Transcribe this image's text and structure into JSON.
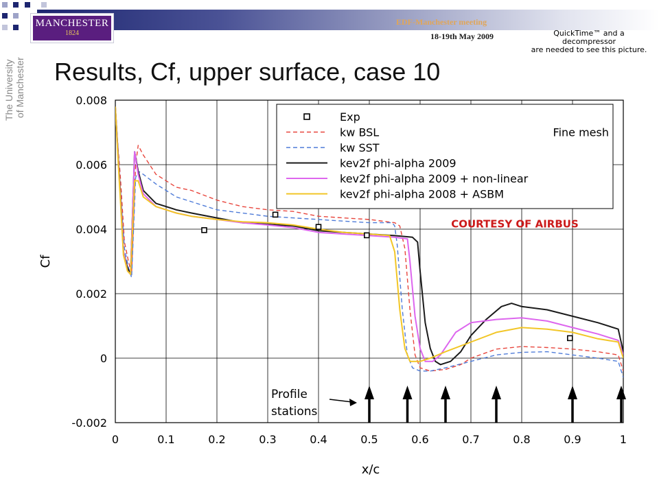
{
  "header": {
    "meeting": "EDF-Manchester meeting",
    "date": "18-19th May 2009",
    "quicktime_notice": [
      "QuickTime™ and a",
      "decompressor",
      "are needed to see this picture."
    ],
    "logo_name": "MANCHESTER",
    "logo_year": "1824",
    "university": [
      "The University",
      "of Manchester"
    ],
    "colors": {
      "banner": "#1d2670",
      "logo": "#5a1e7f",
      "meeting_text": "#e0a65a"
    }
  },
  "slide": {
    "title": "Results, Cf, upper surface, case 10"
  },
  "chart_data": {
    "type": "line",
    "xlabel": "x/c",
    "ylabel": "Cf",
    "xlim": [
      0,
      1
    ],
    "ylim": [
      -0.002,
      0.008
    ],
    "x_ticks": [
      0,
      0.1,
      0.2,
      0.3,
      0.4,
      0.5,
      0.6,
      0.7,
      0.8,
      0.9,
      1
    ],
    "x_tick_labels": [
      "0",
      "0.1",
      "0.2",
      "0.3",
      "0.4",
      "0.5",
      "0.6",
      "0.7",
      "0.8",
      "0.9",
      "1"
    ],
    "y_ticks": [
      -0.002,
      0,
      0.002,
      0.004,
      0.006,
      0.008
    ],
    "y_tick_labels": [
      "-0.002",
      "0",
      "0.002",
      "0.004",
      "0.006",
      "0.008"
    ],
    "grid": true,
    "legend_position": "top-right",
    "legend_note": "Fine mesh",
    "annotation": "COURTESY OF AIRBUS",
    "profile_label": [
      "Profile",
      "stations"
    ],
    "profile_stations": [
      0.5,
      0.575,
      0.65,
      0.75,
      0.9,
      1.0
    ],
    "series": [
      {
        "name": "Exp",
        "style": "markers",
        "color": "#000000",
        "points": [
          [
            0.175,
            0.00397
          ],
          [
            0.315,
            0.00445
          ],
          [
            0.4,
            0.00407
          ],
          [
            0.495,
            0.00381
          ],
          [
            0.895,
            0.00062
          ]
        ]
      },
      {
        "name": "kw BSL",
        "style": "dashed",
        "color": "#e8453c",
        "points": [
          [
            0.0,
            0.0076
          ],
          [
            0.006,
            0.0064
          ],
          [
            0.01,
            0.0056
          ],
          [
            0.018,
            0.0036
          ],
          [
            0.026,
            0.003
          ],
          [
            0.032,
            0.0026
          ],
          [
            0.04,
            0.006
          ],
          [
            0.045,
            0.0066
          ],
          [
            0.055,
            0.0063
          ],
          [
            0.08,
            0.0057
          ],
          [
            0.12,
            0.0053
          ],
          [
            0.15,
            0.0052
          ],
          [
            0.2,
            0.0049
          ],
          [
            0.25,
            0.0047
          ],
          [
            0.3,
            0.0046
          ],
          [
            0.35,
            0.00455
          ],
          [
            0.4,
            0.0044
          ],
          [
            0.45,
            0.00435
          ],
          [
            0.5,
            0.0043
          ],
          [
            0.55,
            0.0042
          ],
          [
            0.56,
            0.0041
          ],
          [
            0.57,
            0.0034
          ],
          [
            0.58,
            0.0015
          ],
          [
            0.59,
            0.0001
          ],
          [
            0.6,
            -0.0003
          ],
          [
            0.62,
            -0.0004
          ],
          [
            0.65,
            -0.00035
          ],
          [
            0.68,
            -0.0002
          ],
          [
            0.7,
            0.0
          ],
          [
            0.75,
            0.00028
          ],
          [
            0.8,
            0.00036
          ],
          [
            0.85,
            0.00033
          ],
          [
            0.9,
            0.00028
          ],
          [
            0.95,
            0.0002
          ],
          [
            0.99,
            0.0001
          ],
          [
            1.0,
            -0.0004
          ]
        ]
      },
      {
        "name": "kw SST",
        "style": "dashed",
        "color": "#4e7bd8",
        "points": [
          [
            0.0,
            0.0075
          ],
          [
            0.006,
            0.0062
          ],
          [
            0.01,
            0.0052
          ],
          [
            0.018,
            0.0034
          ],
          [
            0.026,
            0.0028
          ],
          [
            0.032,
            0.0025
          ],
          [
            0.04,
            0.0056
          ],
          [
            0.045,
            0.0058
          ],
          [
            0.055,
            0.0057
          ],
          [
            0.08,
            0.0054
          ],
          [
            0.12,
            0.005
          ],
          [
            0.15,
            0.00485
          ],
          [
            0.2,
            0.0046
          ],
          [
            0.25,
            0.0045
          ],
          [
            0.3,
            0.0044
          ],
          [
            0.35,
            0.00435
          ],
          [
            0.4,
            0.0043
          ],
          [
            0.45,
            0.00425
          ],
          [
            0.5,
            0.0042
          ],
          [
            0.545,
            0.0042
          ],
          [
            0.55,
            0.0041
          ],
          [
            0.555,
            0.0035
          ],
          [
            0.565,
            0.0015
          ],
          [
            0.575,
            0.0001
          ],
          [
            0.585,
            -0.0003
          ],
          [
            0.6,
            -0.0004
          ],
          [
            0.62,
            -0.0004
          ],
          [
            0.65,
            -0.0003
          ],
          [
            0.7,
            -0.0001
          ],
          [
            0.75,
            0.0001
          ],
          [
            0.8,
            0.00018
          ],
          [
            0.85,
            0.0002
          ],
          [
            0.9,
            0.0001
          ],
          [
            0.95,
            0.0
          ],
          [
            0.99,
            -0.0001
          ],
          [
            1.0,
            -0.0006
          ]
        ]
      },
      {
        "name": "kev2f phi-alpha 2009",
        "style": "solid",
        "color": "#1a1a1a",
        "points": [
          [
            0.0,
            0.0078
          ],
          [
            0.006,
            0.0062
          ],
          [
            0.01,
            0.0051
          ],
          [
            0.016,
            0.0033
          ],
          [
            0.024,
            0.0028
          ],
          [
            0.03,
            0.0026
          ],
          [
            0.038,
            0.0064
          ],
          [
            0.045,
            0.0058
          ],
          [
            0.055,
            0.0052
          ],
          [
            0.08,
            0.0048
          ],
          [
            0.12,
            0.0046
          ],
          [
            0.15,
            0.0045
          ],
          [
            0.2,
            0.00435
          ],
          [
            0.25,
            0.0042
          ],
          [
            0.3,
            0.00415
          ],
          [
            0.35,
            0.0041
          ],
          [
            0.4,
            0.00395
          ],
          [
            0.45,
            0.0039
          ],
          [
            0.5,
            0.00385
          ],
          [
            0.55,
            0.0038
          ],
          [
            0.585,
            0.00375
          ],
          [
            0.595,
            0.0036
          ],
          [
            0.6,
            0.0027
          ],
          [
            0.61,
            0.0011
          ],
          [
            0.62,
            0.0003
          ],
          [
            0.63,
            -0.0001
          ],
          [
            0.64,
            -0.0002
          ],
          [
            0.66,
            -0.0001
          ],
          [
            0.68,
            0.0002
          ],
          [
            0.7,
            0.0007
          ],
          [
            0.73,
            0.0012
          ],
          [
            0.76,
            0.0016
          ],
          [
            0.78,
            0.0017
          ],
          [
            0.8,
            0.0016
          ],
          [
            0.85,
            0.0015
          ],
          [
            0.9,
            0.0013
          ],
          [
            0.95,
            0.0011
          ],
          [
            0.99,
            0.0009
          ],
          [
            1.0,
            0.0002
          ]
        ]
      },
      {
        "name": "kev2f phi-alpha 2009 + non-linear",
        "style": "solid",
        "color": "#dd66ee",
        "points": [
          [
            0.0,
            0.0078
          ],
          [
            0.006,
            0.0061
          ],
          [
            0.01,
            0.005
          ],
          [
            0.016,
            0.0033
          ],
          [
            0.024,
            0.0027
          ],
          [
            0.03,
            0.0026
          ],
          [
            0.038,
            0.0064
          ],
          [
            0.045,
            0.0057
          ],
          [
            0.055,
            0.0051
          ],
          [
            0.08,
            0.0047
          ],
          [
            0.12,
            0.0045
          ],
          [
            0.15,
            0.0044
          ],
          [
            0.2,
            0.0043
          ],
          [
            0.25,
            0.0042
          ],
          [
            0.3,
            0.00413
          ],
          [
            0.35,
            0.00405
          ],
          [
            0.4,
            0.0039
          ],
          [
            0.45,
            0.00385
          ],
          [
            0.5,
            0.0038
          ],
          [
            0.55,
            0.00375
          ],
          [
            0.575,
            0.0037
          ],
          [
            0.58,
            0.003
          ],
          [
            0.59,
            0.0013
          ],
          [
            0.6,
            0.0003
          ],
          [
            0.61,
            -0.0001
          ],
          [
            0.625,
            -0.0001
          ],
          [
            0.64,
            0.0001
          ],
          [
            0.67,
            0.0008
          ],
          [
            0.7,
            0.0011
          ],
          [
            0.75,
            0.0012
          ],
          [
            0.8,
            0.00125
          ],
          [
            0.85,
            0.00115
          ],
          [
            0.9,
            0.00095
          ],
          [
            0.95,
            0.00075
          ],
          [
            0.99,
            0.00055
          ],
          [
            1.0,
            0.0001
          ]
        ]
      },
      {
        "name": "kev2f phi-alpha 2008 + ASBM",
        "style": "solid",
        "color": "#f2c627",
        "points": [
          [
            0.0,
            0.0078
          ],
          [
            0.006,
            0.006
          ],
          [
            0.01,
            0.0049
          ],
          [
            0.016,
            0.0032
          ],
          [
            0.024,
            0.0027
          ],
          [
            0.03,
            0.0026
          ],
          [
            0.038,
            0.0055
          ],
          [
            0.045,
            0.0055
          ],
          [
            0.055,
            0.005
          ],
          [
            0.08,
            0.0047
          ],
          [
            0.12,
            0.0045
          ],
          [
            0.15,
            0.0044
          ],
          [
            0.2,
            0.0043
          ],
          [
            0.25,
            0.00423
          ],
          [
            0.3,
            0.0042
          ],
          [
            0.35,
            0.00413
          ],
          [
            0.4,
            0.004
          ],
          [
            0.45,
            0.0039
          ],
          [
            0.5,
            0.00385
          ],
          [
            0.54,
            0.0038
          ],
          [
            0.55,
            0.0033
          ],
          [
            0.56,
            0.0015
          ],
          [
            0.57,
            0.0003
          ],
          [
            0.58,
            -0.0001
          ],
          [
            0.6,
            -0.0001
          ],
          [
            0.62,
            0.0
          ],
          [
            0.65,
            0.0002
          ],
          [
            0.7,
            0.0005
          ],
          [
            0.75,
            0.0008
          ],
          [
            0.8,
            0.00095
          ],
          [
            0.85,
            0.0009
          ],
          [
            0.9,
            0.0008
          ],
          [
            0.95,
            0.0006
          ],
          [
            0.99,
            0.0005
          ],
          [
            1.0,
            0.0
          ]
        ]
      }
    ]
  }
}
